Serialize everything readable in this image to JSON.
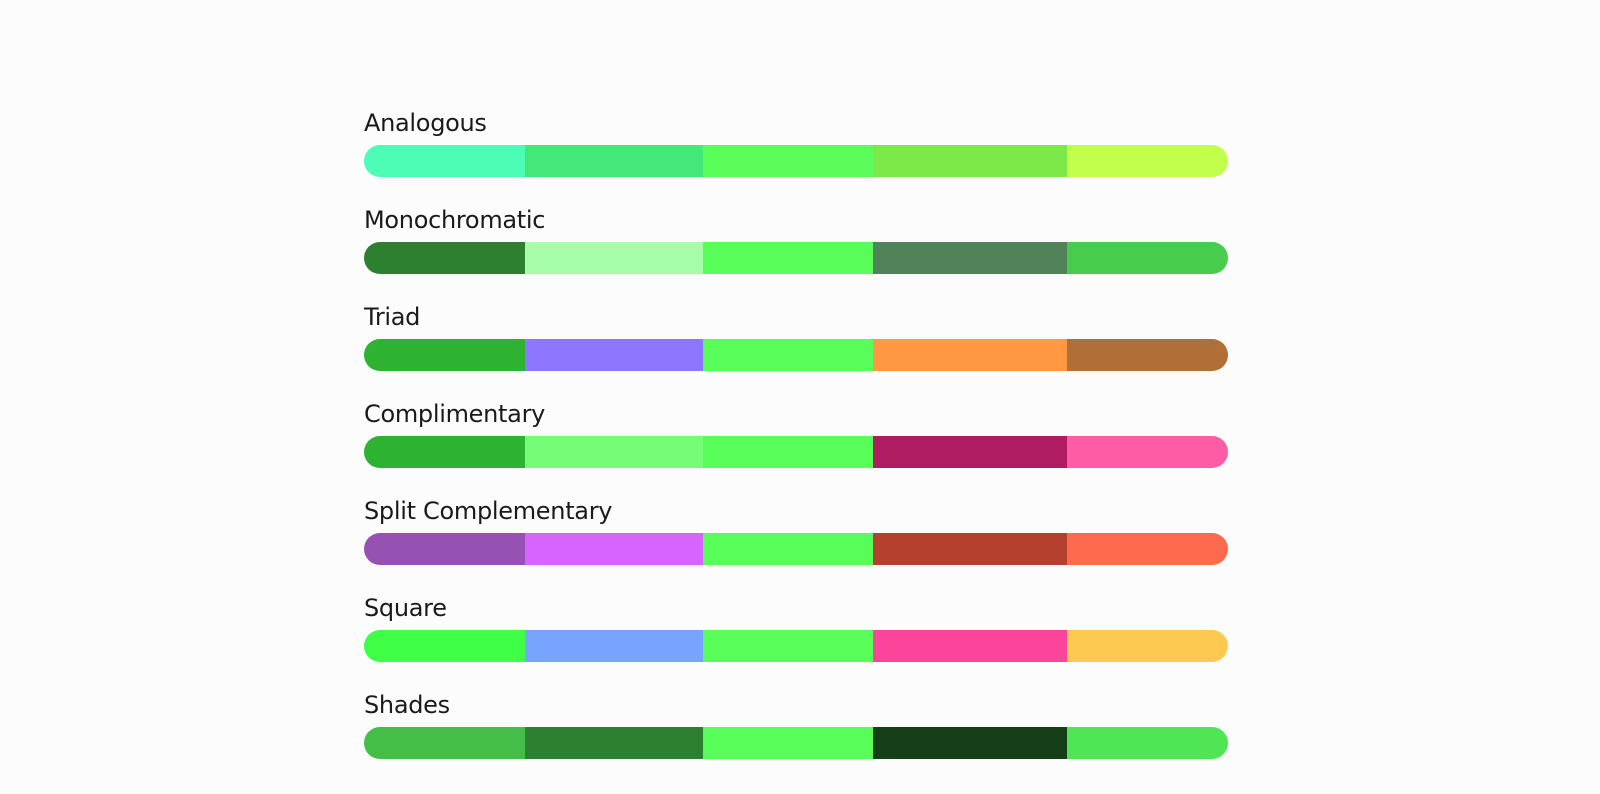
{
  "palettes": [
    {
      "title": "Analogous",
      "colors": [
        "#4dfcb5",
        "#45e778",
        "#5bfd5b",
        "#7ce949",
        "#c2ff4d"
      ]
    },
    {
      "title": "Monochromatic",
      "colors": [
        "#2d8030",
        "#a6ffa8",
        "#59fd5a",
        "#528258",
        "#47cd4b"
      ]
    },
    {
      "title": "Triad",
      "colors": [
        "#2db232",
        "#8f76fe",
        "#59fd5a",
        "#fe9843",
        "#b06f36"
      ]
    },
    {
      "title": "Complimentary",
      "colors": [
        "#2db232",
        "#77fc77",
        "#59fd5a",
        "#b01c62",
        "#fe5da5"
      ]
    },
    {
      "title": "Split Complementary",
      "colors": [
        "#9652b3",
        "#d765fd",
        "#59fd5a",
        "#b4402d",
        "#fe6a4e"
      ]
    },
    {
      "title": "Square",
      "colors": [
        "#3fff46",
        "#78a4fe",
        "#59fd5a",
        "#fd449b",
        "#fec951"
      ]
    },
    {
      "title": "Shades",
      "colors": [
        "#45be48",
        "#2d8030",
        "#59fd5a",
        "#173f17",
        "#4fe555"
      ]
    }
  ]
}
